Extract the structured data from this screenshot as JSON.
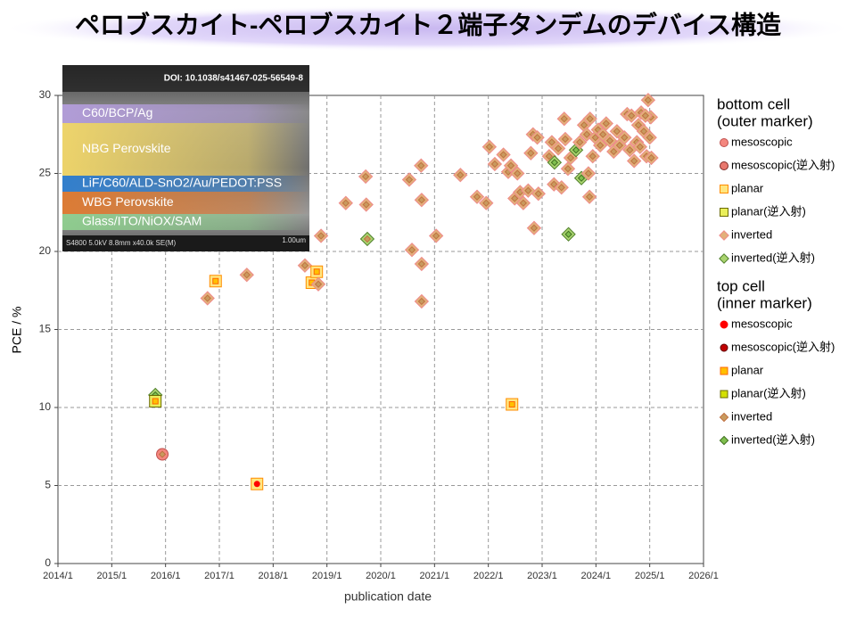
{
  "chart_data": {
    "type": "scatter",
    "title": "ペロブスカイト-ペロブスカイト２端子タンデムのデバイス構造",
    "y_label": "PCE / %",
    "x_label": "publication date",
    "xlim": [
      2014,
      2026
    ],
    "ylim": [
      0,
      30
    ],
    "xticks": [
      {
        "value": 2014,
        "label": "2014/1"
      },
      {
        "value": 2015,
        "label": "2015/1"
      },
      {
        "value": 2016,
        "label": "2016/1"
      },
      {
        "value": 2017,
        "label": "2017/1"
      },
      {
        "value": 2018,
        "label": "2018/1"
      },
      {
        "value": 2019,
        "label": "2019/1"
      },
      {
        "value": 2020,
        "label": "2020/1"
      },
      {
        "value": 2021,
        "label": "2021/1"
      },
      {
        "value": 2022,
        "label": "2022/1"
      },
      {
        "value": 2023,
        "label": "2023/1"
      },
      {
        "value": 2024,
        "label": "2024/1"
      },
      {
        "value": 2025,
        "label": "2025/1"
      },
      {
        "value": 2026,
        "label": "2026/1"
      }
    ],
    "yticks": [
      0,
      5,
      10,
      15,
      20,
      25,
      30
    ],
    "grid": true,
    "legend_position": "right",
    "bottom_cell": {
      "title": [
        "bottom cell",
        "(outer marker)"
      ],
      "types": [
        {
          "name": "mesoscopic",
          "shape": "circle",
          "color": "#f4877f",
          "stroke": "#c0504d"
        },
        {
          "name": "mesoscopic(逆入射)",
          "shape": "circle",
          "color": "#e8786e",
          "stroke": "#7f2a25"
        },
        {
          "name": "planar",
          "shape": "square",
          "color": "#ffe680",
          "stroke": "#ff8c00"
        },
        {
          "name": "planar(逆入射)",
          "shape": "square",
          "color": "#eaef5a",
          "stroke": "#6b6b00"
        },
        {
          "name": "inverted",
          "shape": "diamond",
          "color": "#e2b07a",
          "stroke": "#ef8a8a"
        },
        {
          "name": "inverted(逆入射)",
          "shape": "diamond",
          "color": "#a9d36f",
          "stroke": "#4f7f2a"
        }
      ]
    },
    "top_cell": {
      "title": [
        "top cell",
        "(inner marker)"
      ],
      "types": [
        {
          "name": "mesoscopic",
          "shape": "circle",
          "color": "#ff0000",
          "stroke": "#ff0000"
        },
        {
          "name": "mesoscopic(逆入射)",
          "shape": "circle",
          "color": "#c00000",
          "stroke": "#600000"
        },
        {
          "name": "planar",
          "shape": "square",
          "color": "#ffc000",
          "stroke": "#ff6600"
        },
        {
          "name": "planar(逆入射)",
          "shape": "square",
          "color": "#d4e000",
          "stroke": "#6b6b00"
        },
        {
          "name": "inverted",
          "shape": "diamond",
          "color": "#c89a5e",
          "stroke": "#c07040"
        },
        {
          "name": "inverted(逆入射)",
          "shape": "diamond",
          "color": "#7fbf4f",
          "stroke": "#3f6f1f"
        }
      ]
    },
    "points": {
      "x": [
        2015.81,
        2015.81,
        2015.94,
        2017.7,
        2016.78,
        2016.93,
        2017.51,
        2018.59,
        2018.72,
        2018.81,
        2018.84,
        2018.89,
        2019.35,
        2019.72,
        2019.73,
        2019.75,
        2020.53,
        2020.58,
        2020.75,
        2020.76,
        2020.76,
        2020.76,
        2021.03,
        2021.48,
        2021.79,
        2021.96,
        2022.02,
        2022.12,
        2022.28,
        2022.37,
        2022.42,
        2022.44,
        2022.49,
        2022.54,
        2022.59,
        2022.65,
        2022.74,
        2022.79,
        2022.83,
        2022.85,
        2022.91,
        2022.93,
        2023.13,
        2023.18,
        2023.22,
        2023.23,
        2023.3,
        2023.36,
        2023.41,
        2023.43,
        2023.48,
        2023.49,
        2023.53,
        2023.63,
        2023.7,
        2023.73,
        2023.78,
        2023.83,
        2023.86,
        2023.88,
        2023.89,
        2023.94,
        2023.99,
        2024.04,
        2024.08,
        2024.13,
        2024.19,
        2024.26,
        2024.33,
        2024.39,
        2024.44,
        2024.53,
        2024.58,
        2024.63,
        2024.66,
        2024.71,
        2024.76,
        2024.79,
        2024.84,
        2024.89,
        2024.94,
        2024.97,
        2025.0,
        2025.02,
        2025.03,
        2024.92,
        2024.82
      ],
      "y": [
        10.8,
        10.4,
        7.0,
        5.1,
        17.0,
        18.1,
        18.5,
        19.1,
        18.0,
        18.7,
        17.9,
        21.0,
        23.1,
        24.8,
        23.0,
        20.8,
        24.6,
        20.1,
        25.5,
        23.3,
        19.2,
        16.8,
        21.0,
        24.9,
        23.5,
        23.1,
        26.7,
        25.6,
        26.2,
        25.1,
        25.5,
        10.2,
        23.4,
        25.0,
        23.8,
        23.1,
        23.9,
        26.3,
        27.5,
        21.5,
        27.3,
        23.7,
        26.1,
        27.0,
        24.3,
        25.7,
        26.6,
        24.1,
        28.5,
        27.2,
        25.3,
        21.1,
        26.0,
        26.5,
        27.0,
        24.7,
        28.1,
        27.5,
        25.0,
        23.5,
        28.5,
        26.1,
        27.3,
        27.8,
        26.8,
        27.5,
        28.2,
        27.1,
        26.4,
        27.7,
        26.8,
        27.3,
        28.8,
        26.5,
        28.7,
        25.8,
        27.0,
        28.1,
        28.9,
        27.7,
        26.1,
        29.7,
        27.3,
        28.6,
        26.0,
        28.7,
        26.7
      ],
      "bottom": [
        5,
        3,
        0,
        2,
        4,
        2,
        4,
        4,
        2,
        2,
        4,
        4,
        4,
        4,
        4,
        5,
        4,
        4,
        4,
        4,
        4,
        4,
        4,
        4,
        4,
        4,
        4,
        4,
        4,
        4,
        4,
        2,
        4,
        4,
        4,
        4,
        4,
        4,
        4,
        4,
        4,
        4,
        4,
        4,
        4,
        5,
        4,
        4,
        4,
        4,
        4,
        5,
        4,
        5,
        4,
        5,
        4,
        4,
        4,
        4,
        4,
        4,
        4,
        4,
        4,
        4,
        4,
        4,
        4,
        4,
        4,
        4,
        4,
        4,
        4,
        4,
        4,
        4,
        4,
        4,
        4,
        4,
        4,
        4,
        4,
        4,
        4
      ],
      "top": [
        5,
        2,
        4,
        0,
        4,
        2,
        4,
        4,
        2,
        2,
        4,
        4,
        4,
        4,
        4,
        4,
        4,
        4,
        4,
        4,
        4,
        4,
        4,
        4,
        4,
        4,
        4,
        4,
        4,
        4,
        4,
        2,
        4,
        4,
        4,
        4,
        4,
        4,
        4,
        4,
        4,
        4,
        4,
        4,
        4,
        5,
        4,
        4,
        4,
        4,
        4,
        5,
        4,
        5,
        4,
        5,
        4,
        4,
        4,
        4,
        4,
        4,
        4,
        4,
        4,
        4,
        4,
        4,
        4,
        4,
        4,
        4,
        4,
        4,
        4,
        4,
        4,
        4,
        4,
        4,
        4,
        4,
        4,
        4,
        4,
        4,
        4
      ]
    },
    "inset": {
      "doi": "DOI: 10.1038/s41467-025-56549-8",
      "layers": [
        {
          "label": "C60/BCP/Ag",
          "color": "#b39ddb"
        },
        {
          "label": "NBG Perovskite",
          "color": "#f3d86a"
        },
        {
          "label": "LiF/C60/ALD-SnO2/Au/PEDOT:PSS",
          "color": "#2f7fd0"
        },
        {
          "label": "WBG Perovskite",
          "color": "#e07a30"
        },
        {
          "label": "Glass/ITO/NiOX/SAM",
          "color": "#8fcf8f"
        }
      ],
      "footer": "S4800 5.0kV 8.8mm x40.0k SE(M)",
      "scale": "1.00um"
    }
  }
}
